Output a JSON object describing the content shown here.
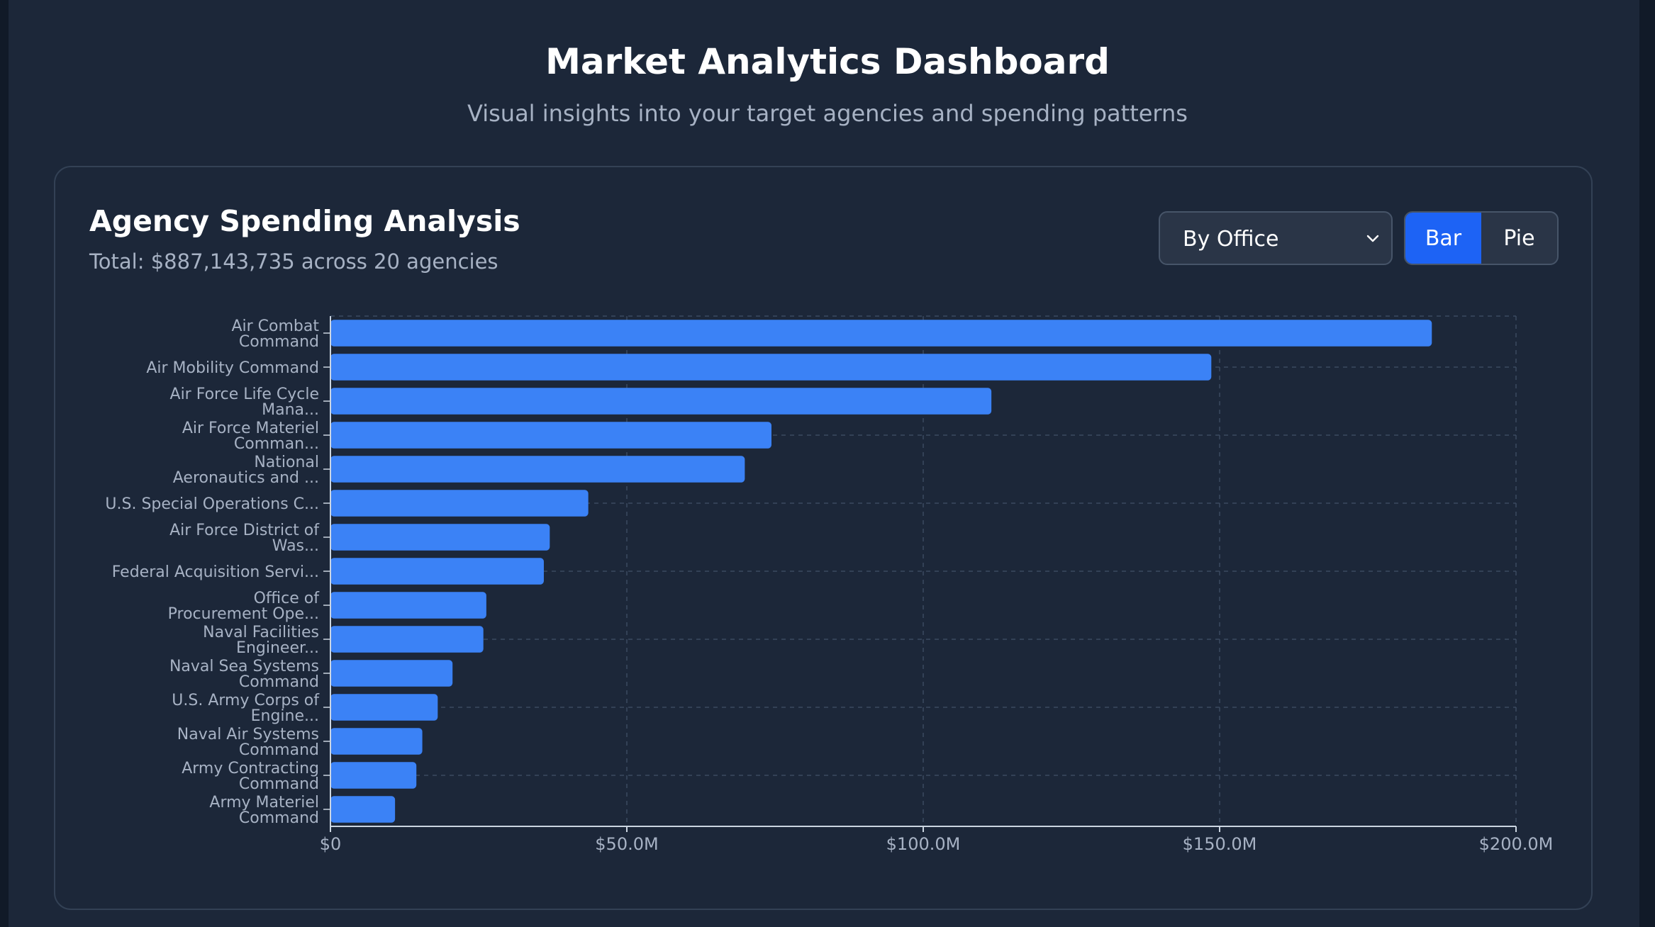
{
  "header": {
    "title": "Market Analytics Dashboard",
    "subtitle": "Visual insights into your target agencies and spending patterns"
  },
  "card": {
    "title": "Agency Spending Analysis",
    "summary": "Total: $887,143,735 across 20 agencies",
    "group_by": {
      "selected": "By Office",
      "icon": "chevron-down-icon"
    },
    "view_toggle": {
      "bar_label": "Bar",
      "pie_label": "Pie",
      "active": "Bar"
    }
  },
  "colors": {
    "bar": "#3b82f6",
    "accent": "#1d63f5",
    "grid": "#3b4a60",
    "axis": "#cbd5e1",
    "tick_text": "#a7b2c4"
  },
  "chart_data": {
    "type": "bar",
    "orientation": "horizontal",
    "xlim": [
      0,
      200000000
    ],
    "x_ticks": [
      {
        "value": 0,
        "label": "$0"
      },
      {
        "value": 50000000,
        "label": "$50.0M"
      },
      {
        "value": 100000000,
        "label": "$100.0M"
      },
      {
        "value": 150000000,
        "label": "$150.0M"
      },
      {
        "value": 200000000,
        "label": "$200.0M"
      }
    ],
    "grid": true,
    "categories": [
      [
        "Air Combat",
        "Command"
      ],
      [
        "Air Mobility Command"
      ],
      [
        "Air Force Life Cycle",
        "Mana..."
      ],
      [
        "Air Force Materiel",
        "Comman..."
      ],
      [
        "National",
        "Aeronautics and ..."
      ],
      [
        "U.S. Special Operations C..."
      ],
      [
        "Air Force District of",
        "Was..."
      ],
      [
        "Federal Acquisition Servi..."
      ],
      [
        "Office of",
        "Procurement Ope..."
      ],
      [
        "Naval Facilities",
        "Engineer..."
      ],
      [
        "Naval Sea Systems",
        "Command"
      ],
      [
        "U.S. Army Corps of",
        "Engine..."
      ],
      [
        "Naval Air Systems",
        "Command"
      ],
      [
        "Army Contracting",
        "Command"
      ],
      [
        "Army Materiel",
        "Command"
      ]
    ],
    "values": [
      185800000,
      148600000,
      111500000,
      74400000,
      69900000,
      43500000,
      37000000,
      36000000,
      26300000,
      25800000,
      20600000,
      18100000,
      15500000,
      14500000,
      10900000
    ]
  }
}
